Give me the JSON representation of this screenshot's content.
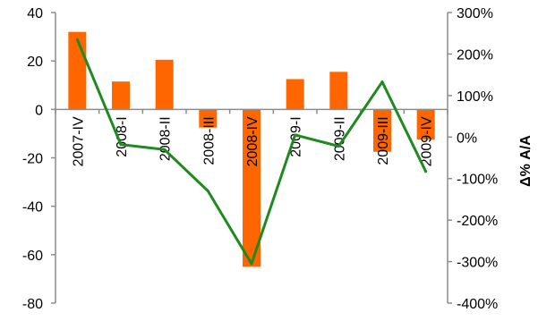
{
  "chart_data": {
    "type": "bar",
    "categories": [
      "2007-IV",
      "2008-I",
      "2008-II",
      "2008-III",
      "2008-IV",
      "2009-I",
      "2009-II",
      "2009-III",
      "2009-IV"
    ],
    "series": [
      {
        "type": "bar",
        "axis": "left",
        "color": "#ff6600",
        "values": [
          32,
          11.5,
          20.5,
          -7.5,
          -65,
          12.5,
          15.5,
          -17.5,
          -12.5
        ]
      },
      {
        "type": "line",
        "axis": "right",
        "color": "#1f8a1f",
        "unit": "%",
        "values": [
          235,
          -18,
          -30,
          -130,
          -305,
          5,
          -22,
          133,
          -83
        ]
      }
    ],
    "ylim_left": [
      -80,
      40
    ],
    "yticks_left": [
      40,
      20,
      0,
      -20,
      -40,
      -60,
      -80
    ],
    "ylim_right": [
      -400,
      300
    ],
    "yticks_right": [
      "300%",
      "200%",
      "100%",
      "0%",
      "-100%",
      "-200%",
      "-300%",
      "-400%"
    ],
    "yticks_right_values": [
      300,
      200,
      100,
      0,
      -100,
      -200,
      -300,
      -400
    ],
    "ylabel_right": "Δ% A/A",
    "xlabel": "",
    "ylabel": "",
    "title": "",
    "grid": false,
    "legend": "none"
  }
}
